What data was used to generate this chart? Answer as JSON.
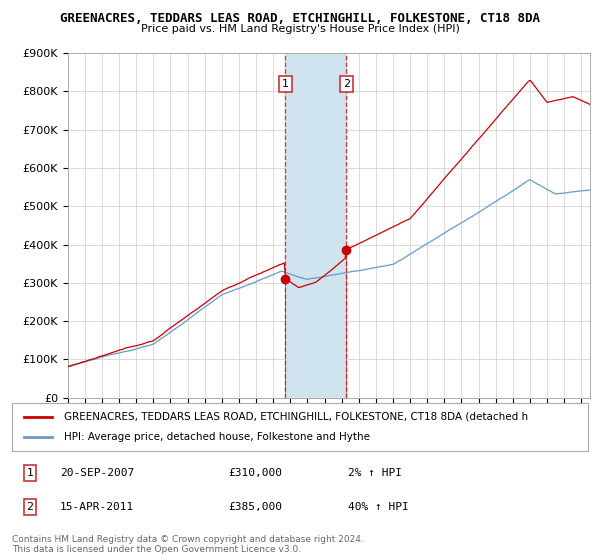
{
  "title": "GREENACRES, TEDDARS LEAS ROAD, ETCHINGHILL, FOLKESTONE, CT18 8DA",
  "subtitle": "Price paid vs. HM Land Registry's House Price Index (HPI)",
  "ylabel_ticks": [
    "£0",
    "£100K",
    "£200K",
    "£300K",
    "£400K",
    "£500K",
    "£600K",
    "£700K",
    "£800K",
    "£900K"
  ],
  "ylim": [
    0,
    900000
  ],
  "xlim_start": 1995.0,
  "xlim_end": 2025.5,
  "sale1_date": 2007.72,
  "sale1_price": 310000,
  "sale1_label": "1",
  "sale1_hpi_pct": "2%",
  "sale1_date_str": "20-SEP-2007",
  "sale2_date": 2011.28,
  "sale2_price": 385000,
  "sale2_label": "2",
  "sale2_hpi_pct": "40%",
  "sale2_date_str": "15-APR-2011",
  "red_line_color": "#cc0000",
  "blue_line_color": "#6699cc",
  "shade_color": "#d0e4f0",
  "legend_label_red": "GREENACRES, TEDDARS LEAS ROAD, ETCHINGHILL, FOLKESTONE, CT18 8DA (detached h",
  "legend_label_blue": "HPI: Average price, detached house, Folkestone and Hythe",
  "footnote": "Contains HM Land Registry data © Crown copyright and database right 2024.\nThis data is licensed under the Open Government Licence v3.0.",
  "background_color": "#ffffff",
  "plot_bg_color": "#ffffff",
  "grid_color": "#cccccc"
}
